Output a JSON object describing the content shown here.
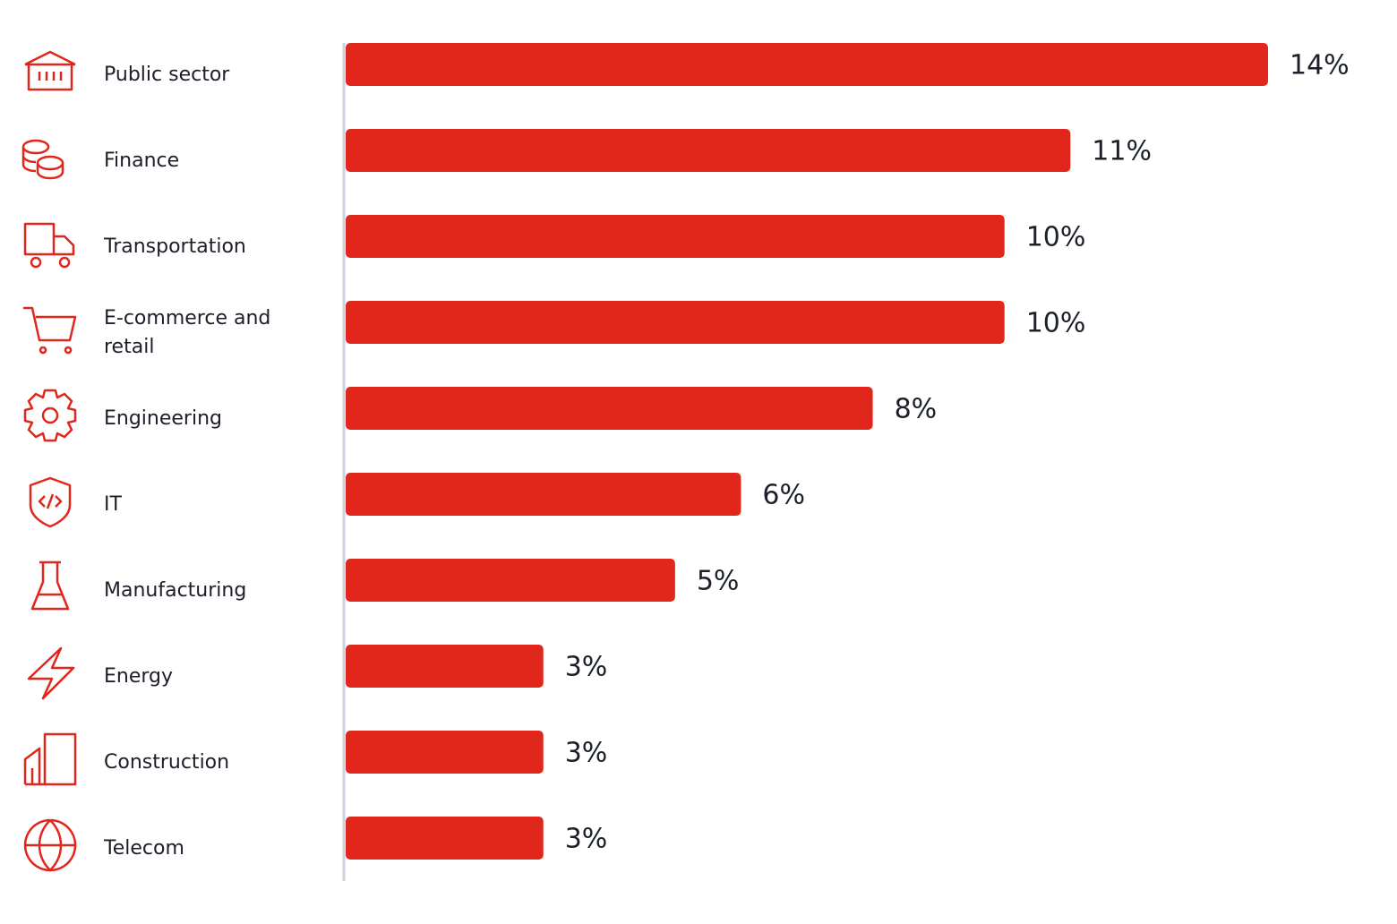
{
  "chart_data": {
    "type": "bar",
    "orientation": "horizontal",
    "categories": [
      "Public sector",
      "Finance",
      "Transportation",
      "E-commerce and retail",
      "Engineering",
      "IT",
      "Manufacturing",
      "Energy",
      "Construction",
      "Telecom"
    ],
    "values": [
      14,
      11,
      10,
      10,
      8,
      6,
      5,
      3,
      3,
      3
    ],
    "value_labels": [
      "14%",
      "11%",
      "10%",
      "10%",
      "8%",
      "6%",
      "5%",
      "3%",
      "3%",
      "3%"
    ],
    "color": "#e1261c"
  }
}
